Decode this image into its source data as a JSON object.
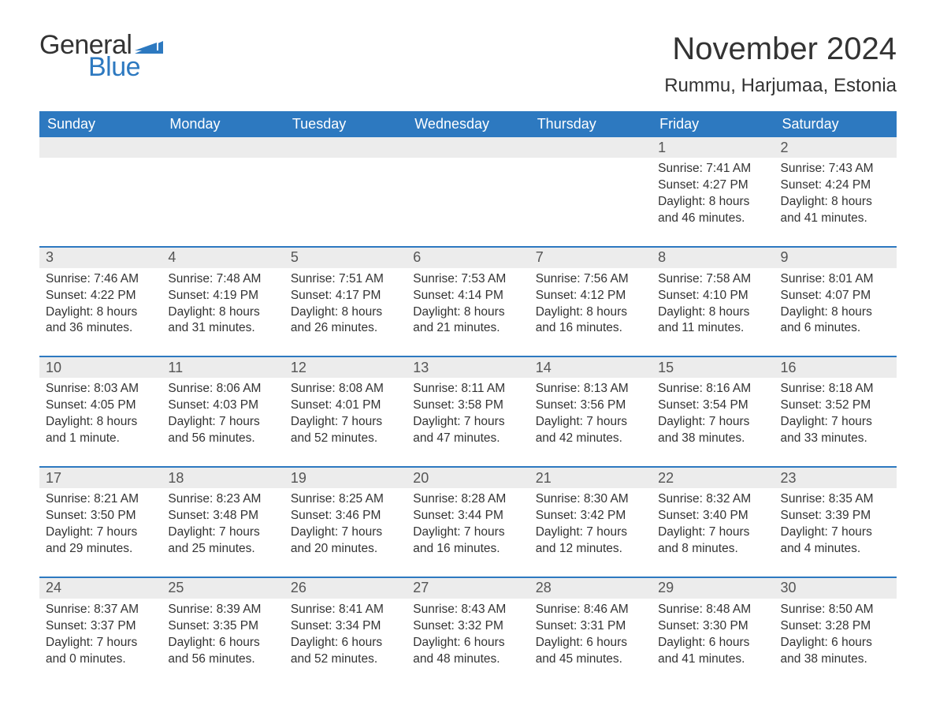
{
  "logo": {
    "text_general": "General",
    "text_blue": "Blue",
    "flag_color": "#2d79c0"
  },
  "header": {
    "month_title": "November 2024",
    "location": "Rummu, Harjumaa, Estonia"
  },
  "colors": {
    "header_bg": "#2d79c0",
    "header_text": "#ffffff",
    "daynum_bg": "#ececec",
    "daynum_text": "#555555",
    "body_text": "#333333",
    "page_bg": "#ffffff",
    "week_divider": "#2d79c0"
  },
  "day_headers": [
    "Sunday",
    "Monday",
    "Tuesday",
    "Wednesday",
    "Thursday",
    "Friday",
    "Saturday"
  ],
  "weeks": [
    [
      {
        "blank": true
      },
      {
        "blank": true
      },
      {
        "blank": true
      },
      {
        "blank": true
      },
      {
        "blank": true
      },
      {
        "num": "1",
        "sunrise": "Sunrise: 7:41 AM",
        "sunset": "Sunset: 4:27 PM",
        "day1": "Daylight: 8 hours",
        "day2": "and 46 minutes."
      },
      {
        "num": "2",
        "sunrise": "Sunrise: 7:43 AM",
        "sunset": "Sunset: 4:24 PM",
        "day1": "Daylight: 8 hours",
        "day2": "and 41 minutes."
      }
    ],
    [
      {
        "num": "3",
        "sunrise": "Sunrise: 7:46 AM",
        "sunset": "Sunset: 4:22 PM",
        "day1": "Daylight: 8 hours",
        "day2": "and 36 minutes."
      },
      {
        "num": "4",
        "sunrise": "Sunrise: 7:48 AM",
        "sunset": "Sunset: 4:19 PM",
        "day1": "Daylight: 8 hours",
        "day2": "and 31 minutes."
      },
      {
        "num": "5",
        "sunrise": "Sunrise: 7:51 AM",
        "sunset": "Sunset: 4:17 PM",
        "day1": "Daylight: 8 hours",
        "day2": "and 26 minutes."
      },
      {
        "num": "6",
        "sunrise": "Sunrise: 7:53 AM",
        "sunset": "Sunset: 4:14 PM",
        "day1": "Daylight: 8 hours",
        "day2": "and 21 minutes."
      },
      {
        "num": "7",
        "sunrise": "Sunrise: 7:56 AM",
        "sunset": "Sunset: 4:12 PM",
        "day1": "Daylight: 8 hours",
        "day2": "and 16 minutes."
      },
      {
        "num": "8",
        "sunrise": "Sunrise: 7:58 AM",
        "sunset": "Sunset: 4:10 PM",
        "day1": "Daylight: 8 hours",
        "day2": "and 11 minutes."
      },
      {
        "num": "9",
        "sunrise": "Sunrise: 8:01 AM",
        "sunset": "Sunset: 4:07 PM",
        "day1": "Daylight: 8 hours",
        "day2": "and 6 minutes."
      }
    ],
    [
      {
        "num": "10",
        "sunrise": "Sunrise: 8:03 AM",
        "sunset": "Sunset: 4:05 PM",
        "day1": "Daylight: 8 hours",
        "day2": "and 1 minute."
      },
      {
        "num": "11",
        "sunrise": "Sunrise: 8:06 AM",
        "sunset": "Sunset: 4:03 PM",
        "day1": "Daylight: 7 hours",
        "day2": "and 56 minutes."
      },
      {
        "num": "12",
        "sunrise": "Sunrise: 8:08 AM",
        "sunset": "Sunset: 4:01 PM",
        "day1": "Daylight: 7 hours",
        "day2": "and 52 minutes."
      },
      {
        "num": "13",
        "sunrise": "Sunrise: 8:11 AM",
        "sunset": "Sunset: 3:58 PM",
        "day1": "Daylight: 7 hours",
        "day2": "and 47 minutes."
      },
      {
        "num": "14",
        "sunrise": "Sunrise: 8:13 AM",
        "sunset": "Sunset: 3:56 PM",
        "day1": "Daylight: 7 hours",
        "day2": "and 42 minutes."
      },
      {
        "num": "15",
        "sunrise": "Sunrise: 8:16 AM",
        "sunset": "Sunset: 3:54 PM",
        "day1": "Daylight: 7 hours",
        "day2": "and 38 minutes."
      },
      {
        "num": "16",
        "sunrise": "Sunrise: 8:18 AM",
        "sunset": "Sunset: 3:52 PM",
        "day1": "Daylight: 7 hours",
        "day2": "and 33 minutes."
      }
    ],
    [
      {
        "num": "17",
        "sunrise": "Sunrise: 8:21 AM",
        "sunset": "Sunset: 3:50 PM",
        "day1": "Daylight: 7 hours",
        "day2": "and 29 minutes."
      },
      {
        "num": "18",
        "sunrise": "Sunrise: 8:23 AM",
        "sunset": "Sunset: 3:48 PM",
        "day1": "Daylight: 7 hours",
        "day2": "and 25 minutes."
      },
      {
        "num": "19",
        "sunrise": "Sunrise: 8:25 AM",
        "sunset": "Sunset: 3:46 PM",
        "day1": "Daylight: 7 hours",
        "day2": "and 20 minutes."
      },
      {
        "num": "20",
        "sunrise": "Sunrise: 8:28 AM",
        "sunset": "Sunset: 3:44 PM",
        "day1": "Daylight: 7 hours",
        "day2": "and 16 minutes."
      },
      {
        "num": "21",
        "sunrise": "Sunrise: 8:30 AM",
        "sunset": "Sunset: 3:42 PM",
        "day1": "Daylight: 7 hours",
        "day2": "and 12 minutes."
      },
      {
        "num": "22",
        "sunrise": "Sunrise: 8:32 AM",
        "sunset": "Sunset: 3:40 PM",
        "day1": "Daylight: 7 hours",
        "day2": "and 8 minutes."
      },
      {
        "num": "23",
        "sunrise": "Sunrise: 8:35 AM",
        "sunset": "Sunset: 3:39 PM",
        "day1": "Daylight: 7 hours",
        "day2": "and 4 minutes."
      }
    ],
    [
      {
        "num": "24",
        "sunrise": "Sunrise: 8:37 AM",
        "sunset": "Sunset: 3:37 PM",
        "day1": "Daylight: 7 hours",
        "day2": "and 0 minutes."
      },
      {
        "num": "25",
        "sunrise": "Sunrise: 8:39 AM",
        "sunset": "Sunset: 3:35 PM",
        "day1": "Daylight: 6 hours",
        "day2": "and 56 minutes."
      },
      {
        "num": "26",
        "sunrise": "Sunrise: 8:41 AM",
        "sunset": "Sunset: 3:34 PM",
        "day1": "Daylight: 6 hours",
        "day2": "and 52 minutes."
      },
      {
        "num": "27",
        "sunrise": "Sunrise: 8:43 AM",
        "sunset": "Sunset: 3:32 PM",
        "day1": "Daylight: 6 hours",
        "day2": "and 48 minutes."
      },
      {
        "num": "28",
        "sunrise": "Sunrise: 8:46 AM",
        "sunset": "Sunset: 3:31 PM",
        "day1": "Daylight: 6 hours",
        "day2": "and 45 minutes."
      },
      {
        "num": "29",
        "sunrise": "Sunrise: 8:48 AM",
        "sunset": "Sunset: 3:30 PM",
        "day1": "Daylight: 6 hours",
        "day2": "and 41 minutes."
      },
      {
        "num": "30",
        "sunrise": "Sunrise: 8:50 AM",
        "sunset": "Sunset: 3:28 PM",
        "day1": "Daylight: 6 hours",
        "day2": "and 38 minutes."
      }
    ]
  ]
}
